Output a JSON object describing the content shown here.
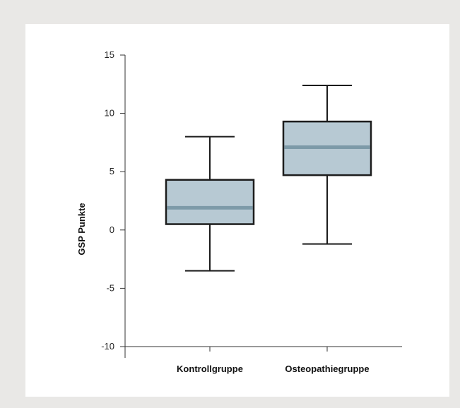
{
  "chart_data": {
    "type": "boxplot",
    "title": "",
    "xlabel": "",
    "ylabel": "GSP Punkte",
    "ylim": [
      -10,
      15
    ],
    "yticks": [
      15,
      10,
      5,
      0,
      -5,
      -10
    ],
    "ytick_labels": [
      "15",
      "10",
      "5",
      "0",
      "-5",
      "-10"
    ],
    "grid": false,
    "categories": [
      "Kontrollgruppe",
      "Osteopathiegruppe"
    ],
    "boxes": [
      {
        "category": "Kontrollgruppe",
        "whisker_low": -3.5,
        "q1": 0.5,
        "median": 1.9,
        "q3": 4.3,
        "whisker_high": 8.0
      },
      {
        "category": "Osteopathiegruppe",
        "whisker_low": -1.2,
        "q1": 4.7,
        "median": 7.1,
        "q3": 9.3,
        "whisker_high": 12.4
      }
    ],
    "colors": {
      "box_fill": "#b7c9d3",
      "box_stroke": "#1c1c1c",
      "median": "#7d9aa8",
      "axis": "#333333"
    }
  }
}
